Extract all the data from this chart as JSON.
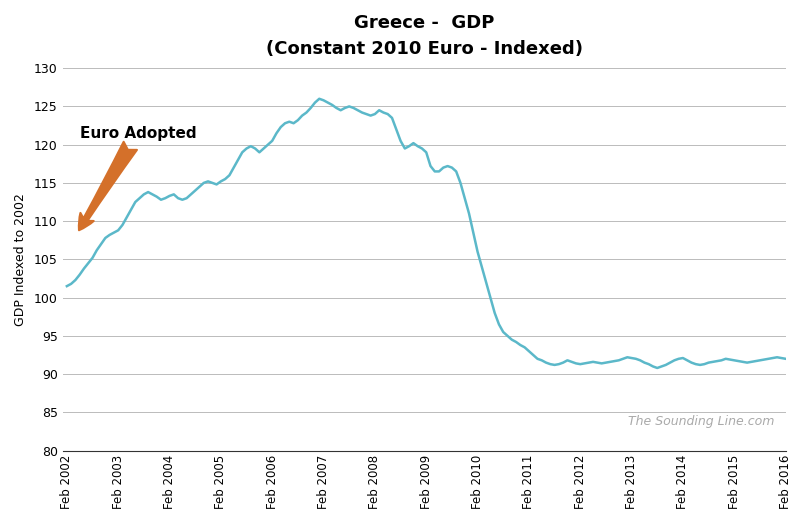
{
  "title_line1": "Greece -  GDP",
  "title_line2": "(Constant 2010 Euro - Indexed)",
  "ylabel": "GDP Indexed to 2002",
  "xlabel": "",
  "ylim": [
    80,
    130
  ],
  "yticks": [
    80,
    85,
    90,
    95,
    100,
    105,
    110,
    115,
    120,
    125,
    130
  ],
  "line_color": "#5bb8c9",
  "line_width": 1.8,
  "background_color": "#ffffff",
  "annotation_text": "Euro Adopted",
  "watermark": "The Sounding Line.com",
  "x_tick_labels": [
    "Feb 2002",
    "Feb 2003",
    "Feb 2004",
    "Feb 2005",
    "Feb 2006",
    "Feb 2007",
    "Feb 2008",
    "Feb 2009",
    "Feb 2010",
    "Feb 2011",
    "Feb 2012",
    "Feb 2013",
    "Feb 2014",
    "Feb 2015",
    "Feb 2016"
  ],
  "gdp_data": [
    101.5,
    101.8,
    102.3,
    103.0,
    103.8,
    104.5,
    105.2,
    106.2,
    107.0,
    107.8,
    108.2,
    108.5,
    108.8,
    109.5,
    110.5,
    111.5,
    112.5,
    113.0,
    113.5,
    113.8,
    113.5,
    113.2,
    112.8,
    113.0,
    113.3,
    113.5,
    113.0,
    112.8,
    113.0,
    113.5,
    114.0,
    114.5,
    115.0,
    115.2,
    115.0,
    114.8,
    115.2,
    115.5,
    116.0,
    117.0,
    118.0,
    119.0,
    119.5,
    119.8,
    119.5,
    119.0,
    119.5,
    120.0,
    120.5,
    121.5,
    122.3,
    122.8,
    123.0,
    122.8,
    123.2,
    123.8,
    124.2,
    124.8,
    125.5,
    126.0,
    125.8,
    125.5,
    125.2,
    124.8,
    124.5,
    124.8,
    125.0,
    124.8,
    124.5,
    124.2,
    124.0,
    123.8,
    124.0,
    124.5,
    124.2,
    124.0,
    123.5,
    122.0,
    120.5,
    119.5,
    119.8,
    120.2,
    119.8,
    119.5,
    119.0,
    117.2,
    116.5,
    116.5,
    117.0,
    117.2,
    117.0,
    116.5,
    115.0,
    113.0,
    111.0,
    108.5,
    106.0,
    104.0,
    102.0,
    100.0,
    98.0,
    96.5,
    95.5,
    95.0,
    94.5,
    94.2,
    93.8,
    93.5,
    93.0,
    92.5,
    92.0,
    91.8,
    91.5,
    91.3,
    91.2,
    91.3,
    91.5,
    91.8,
    91.6,
    91.4,
    91.3,
    91.4,
    91.5,
    91.6,
    91.5,
    91.4,
    91.5,
    91.6,
    91.7,
    91.8,
    92.0,
    92.2,
    92.1,
    92.0,
    91.8,
    91.5,
    91.3,
    91.0,
    90.8,
    91.0,
    91.2,
    91.5,
    91.8,
    92.0,
    92.1,
    91.8,
    91.5,
    91.3,
    91.2,
    91.3,
    91.5,
    91.6,
    91.7,
    91.8,
    92.0,
    91.9,
    91.8,
    91.7,
    91.6,
    91.5,
    91.6,
    91.7,
    91.8,
    91.9,
    92.0,
    92.1,
    92.2,
    92.1,
    92.0
  ]
}
